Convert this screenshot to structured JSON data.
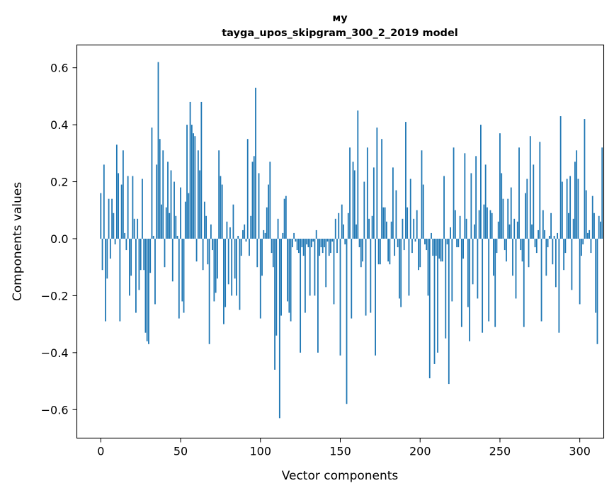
{
  "chart_data": {
    "type": "bar",
    "title_lines": [
      "мy",
      "tayga_upos_skipgram_300_2_2019 model"
    ],
    "xlabel": "Vector components",
    "ylabel": "Components values",
    "xlim": [
      -15,
      315
    ],
    "ylim": [
      -0.7,
      0.68
    ],
    "xticks": [
      0,
      50,
      100,
      150,
      200,
      250,
      300
    ],
    "yticks": [
      -0.6,
      -0.4,
      -0.2,
      0.0,
      0.2,
      0.4,
      0.6
    ],
    "ytick_labels": [
      "−0.6",
      "−0.4",
      "−0.2",
      "0.0",
      "0.2",
      "0.4",
      "0.6"
    ],
    "bar_color": "#1f77b4",
    "values": [
      0.16,
      -0.11,
      0.26,
      -0.29,
      -0.14,
      0.14,
      -0.07,
      0.14,
      0.09,
      -0.02,
      0.33,
      0.23,
      -0.29,
      0.19,
      0.31,
      0.02,
      -0.04,
      0.22,
      -0.2,
      -0.13,
      0.22,
      0.07,
      -0.26,
      0.07,
      -0.18,
      -0.11,
      0.21,
      -0.11,
      -0.33,
      -0.36,
      -0.37,
      -0.12,
      0.39,
      0.01,
      -0.23,
      0.26,
      0.62,
      0.35,
      0.12,
      0.31,
      -0.1,
      0.11,
      0.27,
      0.09,
      0.24,
      -0.15,
      0.2,
      0.08,
      0.01,
      -0.28,
      0.18,
      -0.22,
      -0.26,
      0.13,
      0.4,
      0.16,
      0.48,
      0.4,
      0.37,
      0.36,
      -0.08,
      0.31,
      0.24,
      0.48,
      -0.11,
      0.13,
      0.08,
      -0.09,
      -0.37,
      0.05,
      -0.04,
      -0.22,
      -0.19,
      -0.14,
      0.31,
      0.22,
      0.19,
      -0.3,
      -0.24,
      0.06,
      -0.16,
      0.04,
      -0.2,
      0.12,
      -0.14,
      -0.2,
      0.01,
      -0.25,
      -0.06,
      0.03,
      0.05,
      -0.01,
      0.35,
      -0.06,
      0.08,
      0.27,
      0.29,
      0.53,
      -0.1,
      0.23,
      -0.28,
      -0.13,
      0.03,
      0.02,
      0.11,
      0.19,
      0.27,
      -0.05,
      -0.1,
      -0.46,
      -0.34,
      0.07,
      -0.63,
      -0.27,
      0.02,
      0.14,
      0.15,
      -0.22,
      -0.26,
      -0.29,
      -0.03,
      0.02,
      -0.01,
      -0.04,
      -0.05,
      -0.4,
      -0.03,
      -0.06,
      -0.26,
      -0.02,
      -0.03,
      -0.2,
      -0.03,
      -0.01,
      -0.2,
      0.03,
      -0.4,
      -0.06,
      -0.03,
      -0.05,
      -0.03,
      -0.17,
      -0.01,
      -0.06,
      -0.05,
      -0.01,
      -0.23,
      0.07,
      -0.05,
      0.09,
      -0.41,
      0.12,
      0.05,
      -0.02,
      -0.58,
      0.09,
      0.32,
      -0.28,
      0.27,
      0.24,
      0.05,
      0.45,
      -0.03,
      -0.1,
      -0.08,
      0.2,
      -0.27,
      0.32,
      0.07,
      -0.26,
      0.08,
      0.25,
      -0.41,
      0.39,
      -0.09,
      -0.09,
      0.35,
      0.11,
      0.11,
      0.06,
      -0.08,
      -0.09,
      0.06,
      0.25,
      -0.06,
      0.17,
      -0.03,
      -0.21,
      -0.24,
      0.07,
      -0.04,
      0.41,
      0.11,
      -0.2,
      0.21,
      -0.05,
      0.07,
      -0.01,
      0.1,
      -0.11,
      -0.1,
      0.31,
      0.19,
      -0.02,
      -0.04,
      -0.2,
      -0.49,
      0.02,
      -0.06,
      -0.44,
      -0.06,
      -0.4,
      -0.07,
      -0.08,
      -0.08,
      0.22,
      -0.35,
      -0.02,
      -0.51,
      0.04,
      -0.22,
      0.32,
      0.1,
      -0.03,
      -0.03,
      0.08,
      -0.31,
      -0.07,
      0.3,
      0.07,
      -0.24,
      -0.36,
      0.23,
      -0.16,
      0.05,
      0.29,
      -0.21,
      0.1,
      0.4,
      -0.33,
      0.12,
      0.26,
      0.11,
      -0.29,
      0.1,
      0.09,
      -0.13,
      -0.31,
      -0.05,
      0.06,
      0.37,
      0.23,
      0.14,
      -0.04,
      -0.08,
      0.14,
      0.05,
      0.18,
      -0.13,
      0.07,
      -0.21,
      0.06,
      0.32,
      -0.04,
      -0.08,
      -0.31,
      0.16,
      0.21,
      -0.1,
      0.36,
      0.05,
      0.26,
      -0.03,
      -0.05,
      0.03,
      0.34,
      -0.29,
      0.1,
      0.03,
      -0.13,
      -0.03,
      0.01,
      0.09,
      -0.09,
      0.01,
      -0.17,
      0.02,
      -0.33,
      0.43,
      0.2,
      -0.11,
      -0.05,
      0.21,
      0.09,
      0.22,
      -0.18,
      0.07,
      0.27,
      0.31,
      0.21,
      -0.23,
      -0.06,
      -0.02,
      0.42,
      0.17,
      0.02,
      0.03,
      -0.05,
      0.15,
      0.09,
      -0.26,
      -0.37,
      0.08,
      0.06,
      0.32
    ]
  }
}
